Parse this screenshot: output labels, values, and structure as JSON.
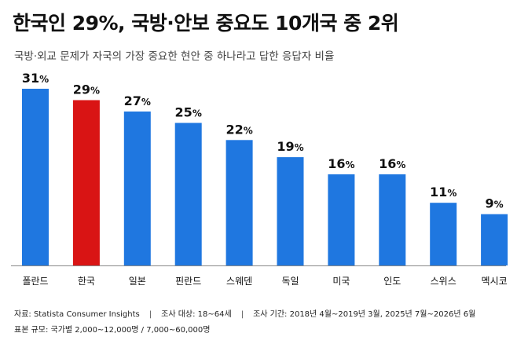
{
  "title": "한국인 29%, 국방·안보 중요도 10개국 중 2위",
  "subtitle": "국방·외교 문제가 자국의 가장 중요한 현안 중 하나라고 답한 응답자 비율",
  "colors": {
    "default": "#1f77e0",
    "highlight": "#d91414"
  },
  "chart_data": {
    "type": "bar",
    "categories": [
      "폴란드",
      "한국",
      "일본",
      "핀란드",
      "스웨덴",
      "독일",
      "미국",
      "인도",
      "스위스",
      "멕시코"
    ],
    "values": [
      31,
      29,
      27,
      25,
      22,
      19,
      16,
      16,
      11,
      9
    ],
    "value_labels": [
      "31%",
      "29%",
      "27%",
      "25%",
      "22%",
      "19%",
      "16%",
      "16%",
      "11%",
      "9%"
    ],
    "highlight_category": "한국",
    "ylim": [
      0,
      31
    ],
    "grid": false,
    "xlabel": "",
    "ylabel": ""
  },
  "footer": {
    "source": "자료: Statista Consumer Insights",
    "target": "조사 대상: 18~64세",
    "period": "조사 기간: 2018년 4월~2019년 3월, 2025년 7월~2026년 6월",
    "sample": "표본 규모: 국가별 2,000~12,000명  /  7,000~60,000명"
  }
}
